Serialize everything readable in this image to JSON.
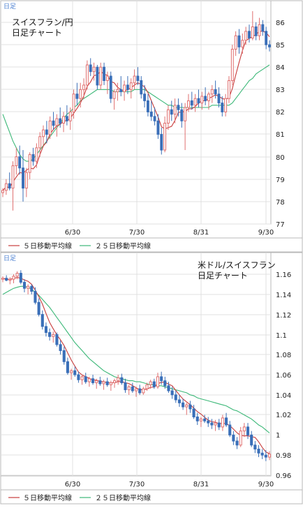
{
  "colors": {
    "border": "#b8b8b8",
    "grid": "#e0e0e0",
    "up": "#e07070",
    "down": "#3a6fb8",
    "ma5": "#c83c3c",
    "ma25": "#3cb878",
    "corner_label": "#4a7fd0"
  },
  "chart_data": [
    {
      "type": "candlestick",
      "corner_label": "日足",
      "title_lines": [
        "スイスフラン/円",
        "日足チャート"
      ],
      "x_tick_labels": [
        "6/30",
        "7/30",
        "8/31",
        "9/30"
      ],
      "y_tick_labels": [
        "86",
        "85",
        "84",
        "83",
        "82",
        "81",
        "80",
        "79",
        "78",
        "77"
      ],
      "ylim": [
        77,
        86.5
      ],
      "grid": true,
      "legend": [
        {
          "name": "５日移動平均線",
          "color": "#c83c3c"
        },
        {
          "name": "２５日移動平均線",
          "color": "#3cb878"
        }
      ],
      "ohlc": [
        [
          78.4,
          78.6,
          78.2,
          78.5
        ],
        [
          78.5,
          79.0,
          78.3,
          78.8
        ],
        [
          78.8,
          79.3,
          78.5,
          78.6
        ],
        [
          78.6,
          79.8,
          77.6,
          79.6
        ],
        [
          79.6,
          80.4,
          79.2,
          80.0
        ],
        [
          80.0,
          80.5,
          79.2,
          79.5
        ],
        [
          79.5,
          80.3,
          78.0,
          78.6
        ],
        [
          78.6,
          79.5,
          78.2,
          79.3
        ],
        [
          79.3,
          80.2,
          79.0,
          80.1
        ],
        [
          80.1,
          80.4,
          79.6,
          79.8
        ],
        [
          79.8,
          80.6,
          79.5,
          80.4
        ],
        [
          80.4,
          81.1,
          80.0,
          80.9
        ],
        [
          80.9,
          81.4,
          80.5,
          81.2
        ],
        [
          81.2,
          81.6,
          80.6,
          81.0
        ],
        [
          81.0,
          81.8,
          80.8,
          81.6
        ],
        [
          81.6,
          82.0,
          81.2,
          81.4
        ],
        [
          81.4,
          81.9,
          80.9,
          81.7
        ],
        [
          81.7,
          82.2,
          81.3,
          81.5
        ],
        [
          81.5,
          82.0,
          81.1,
          81.8
        ],
        [
          81.8,
          82.3,
          81.4,
          81.6
        ],
        [
          81.6,
          82.2,
          81.2,
          82.0
        ],
        [
          82.0,
          83.0,
          81.7,
          82.8
        ],
        [
          82.8,
          83.3,
          82.3,
          82.6
        ],
        [
          82.6,
          83.3,
          82.2,
          83.0
        ],
        [
          83.0,
          83.5,
          82.6,
          83.2
        ],
        [
          83.2,
          84.3,
          83.0,
          84.1
        ],
        [
          84.1,
          84.4,
          83.6,
          83.8
        ],
        [
          83.8,
          84.2,
          83.4,
          84.0
        ],
        [
          84.0,
          84.1,
          83.0,
          83.2
        ],
        [
          83.2,
          84.2,
          83.0,
          84.0
        ],
        [
          84.0,
          84.2,
          83.2,
          83.4
        ],
        [
          83.4,
          83.8,
          82.8,
          83.6
        ],
        [
          83.6,
          83.8,
          82.4,
          82.6
        ],
        [
          82.6,
          83.0,
          82.1,
          82.9
        ],
        [
          82.9,
          83.3,
          82.5,
          83.0
        ],
        [
          83.0,
          83.6,
          82.7,
          82.9
        ],
        [
          82.9,
          83.4,
          82.5,
          83.2
        ],
        [
          83.2,
          83.6,
          82.8,
          83.0
        ],
        [
          83.0,
          83.5,
          82.6,
          83.3
        ],
        [
          83.3,
          83.9,
          83.0,
          83.6
        ],
        [
          83.6,
          84.0,
          83.2,
          83.4
        ],
        [
          83.4,
          83.6,
          82.6,
          82.8
        ],
        [
          82.8,
          83.2,
          82.2,
          82.5
        ],
        [
          82.5,
          82.8,
          81.8,
          82.0
        ],
        [
          82.0,
          82.5,
          81.6,
          81.8
        ],
        [
          81.8,
          82.2,
          81.4,
          81.6
        ],
        [
          81.6,
          81.9,
          80.8,
          81.0
        ],
        [
          81.0,
          81.3,
          80.1,
          80.3
        ],
        [
          80.3,
          81.8,
          80.2,
          81.5
        ],
        [
          81.5,
          82.3,
          81.2,
          82.1
        ],
        [
          82.1,
          82.5,
          81.6,
          81.9
        ],
        [
          81.9,
          82.6,
          81.5,
          82.3
        ],
        [
          82.3,
          82.6,
          81.8,
          82.1
        ],
        [
          82.1,
          82.4,
          81.3,
          81.6
        ],
        [
          81.6,
          82.4,
          80.3,
          82.2
        ],
        [
          82.2,
          82.8,
          82.0,
          82.5
        ],
        [
          82.5,
          82.9,
          82.1,
          82.3
        ],
        [
          82.3,
          82.8,
          82.0,
          82.6
        ],
        [
          82.6,
          83.0,
          82.2,
          82.4
        ],
        [
          82.4,
          82.9,
          82.1,
          82.7
        ],
        [
          82.7,
          83.1,
          82.3,
          82.5
        ],
        [
          82.5,
          82.9,
          82.1,
          82.8
        ],
        [
          82.8,
          83.2,
          82.4,
          83.0
        ],
        [
          83.0,
          83.4,
          82.6,
          82.8
        ],
        [
          82.8,
          83.1,
          82.2,
          82.4
        ],
        [
          82.4,
          82.7,
          81.8,
          82.0
        ],
        [
          82.0,
          82.8,
          81.8,
          82.6
        ],
        [
          82.6,
          83.6,
          82.4,
          83.4
        ],
        [
          83.4,
          85.0,
          83.2,
          84.8
        ],
        [
          84.8,
          85.6,
          84.5,
          85.4
        ],
        [
          85.4,
          85.7,
          84.6,
          84.9
        ],
        [
          84.9,
          85.5,
          84.6,
          85.2
        ],
        [
          85.2,
          85.8,
          85.0,
          85.6
        ],
        [
          85.6,
          85.9,
          85.1,
          85.3
        ],
        [
          85.3,
          86.5,
          85.2,
          85.8
        ],
        [
          85.8,
          86.0,
          85.2,
          85.4
        ],
        [
          85.4,
          86.2,
          85.2,
          85.9
        ],
        [
          85.9,
          86.1,
          85.4,
          85.6
        ],
        [
          85.6,
          85.8,
          84.8,
          85.0
        ],
        [
          85.0,
          85.2,
          84.7,
          84.9
        ]
      ],
      "ma25": [
        81.9,
        81.5,
        81.1,
        80.7,
        80.4,
        80.1,
        79.9,
        79.8,
        79.8,
        79.9,
        80.1,
        80.3,
        80.5,
        80.7,
        80.9,
        81.1,
        81.3,
        81.5,
        81.7,
        81.9,
        82.0,
        82.2,
        82.3,
        82.5,
        82.6,
        82.7,
        82.8,
        82.9,
        83.0,
        83.0,
        83.0,
        83.0,
        83.0,
        82.9,
        82.9,
        82.9,
        82.9,
        82.9,
        82.9,
        83.0,
        83.0,
        83.0,
        83.0,
        82.9,
        82.8,
        82.7,
        82.6,
        82.5,
        82.4,
        82.3,
        82.3,
        82.2,
        82.2,
        82.2,
        82.2,
        82.2,
        82.2,
        82.2,
        82.2,
        82.2,
        82.2,
        82.2,
        82.3,
        82.3,
        82.3,
        82.3,
        82.3,
        82.3,
        82.4,
        82.6,
        82.8,
        83.0,
        83.2,
        83.4,
        83.5,
        83.7,
        83.8,
        83.9,
        84.0,
        84.1
      ]
    },
    {
      "type": "candlestick",
      "corner_label": "日足",
      "title_lines": [
        "米ドル/スイスフラン",
        "日足チャート"
      ],
      "x_tick_labels": [
        "6/30",
        "7/30",
        "8/31",
        "9/30"
      ],
      "y_tick_labels": [
        "1.16",
        "1.14",
        "1.12",
        "1.1",
        "1.08",
        "1.06",
        "1.04",
        "1.02",
        "1",
        "0.98",
        "0.96"
      ],
      "ylim": [
        0.96,
        1.17
      ],
      "grid": true,
      "legend": [
        {
          "name": "５日移動平均線",
          "color": "#c83c3c"
        },
        {
          "name": "２５日移動平均線",
          "color": "#3cb878"
        }
      ],
      "ohlc": [
        [
          1.155,
          1.158,
          1.152,
          1.156
        ],
        [
          1.156,
          1.159,
          1.153,
          1.154
        ],
        [
          1.154,
          1.157,
          1.15,
          1.155
        ],
        [
          1.155,
          1.16,
          1.151,
          1.158
        ],
        [
          1.158,
          1.163,
          1.155,
          1.161
        ],
        [
          1.161,
          1.164,
          1.15,
          1.152
        ],
        [
          1.152,
          1.155,
          1.142,
          1.146
        ],
        [
          1.146,
          1.15,
          1.14,
          1.148
        ],
        [
          1.148,
          1.15,
          1.14,
          1.143
        ],
        [
          1.143,
          1.147,
          1.13,
          1.132
        ],
        [
          1.132,
          1.136,
          1.118,
          1.12
        ],
        [
          1.12,
          1.124,
          1.105,
          1.108
        ],
        [
          1.108,
          1.112,
          1.098,
          1.102
        ],
        [
          1.102,
          1.106,
          1.094,
          1.098
        ],
        [
          1.098,
          1.103,
          1.092,
          1.1
        ],
        [
          1.1,
          1.102,
          1.088,
          1.09
        ],
        [
          1.09,
          1.094,
          1.08,
          1.084
        ],
        [
          1.084,
          1.088,
          1.07,
          1.073
        ],
        [
          1.073,
          1.077,
          1.06,
          1.062
        ],
        [
          1.062,
          1.066,
          1.055,
          1.064
        ],
        [
          1.064,
          1.068,
          1.058,
          1.06
        ],
        [
          1.06,
          1.063,
          1.052,
          1.055
        ],
        [
          1.055,
          1.06,
          1.05,
          1.058
        ],
        [
          1.058,
          1.062,
          1.051,
          1.053
        ],
        [
          1.053,
          1.058,
          1.048,
          1.056
        ],
        [
          1.056,
          1.06,
          1.05,
          1.052
        ],
        [
          1.052,
          1.056,
          1.046,
          1.054
        ],
        [
          1.054,
          1.058,
          1.049,
          1.051
        ],
        [
          1.051,
          1.055,
          1.045,
          1.053
        ],
        [
          1.053,
          1.057,
          1.048,
          1.05
        ],
        [
          1.05,
          1.054,
          1.044,
          1.052
        ],
        [
          1.052,
          1.056,
          1.047,
          1.054
        ],
        [
          1.054,
          1.06,
          1.05,
          1.057
        ],
        [
          1.057,
          1.061,
          1.05,
          1.052
        ],
        [
          1.052,
          1.056,
          1.042,
          1.045
        ],
        [
          1.045,
          1.05,
          1.04,
          1.048
        ],
        [
          1.048,
          1.052,
          1.042,
          1.044
        ],
        [
          1.044,
          1.048,
          1.038,
          1.046
        ],
        [
          1.046,
          1.05,
          1.04,
          1.042
        ],
        [
          1.042,
          1.048,
          1.04,
          1.046
        ],
        [
          1.046,
          1.052,
          1.044,
          1.05
        ],
        [
          1.05,
          1.055,
          1.046,
          1.053
        ],
        [
          1.053,
          1.056,
          1.046,
          1.048
        ],
        [
          1.048,
          1.062,
          1.046,
          1.058
        ],
        [
          1.058,
          1.063,
          1.05,
          1.054
        ],
        [
          1.054,
          1.058,
          1.046,
          1.049
        ],
        [
          1.049,
          1.053,
          1.042,
          1.044
        ],
        [
          1.044,
          1.048,
          1.036,
          1.04
        ],
        [
          1.04,
          1.044,
          1.032,
          1.035
        ],
        [
          1.035,
          1.04,
          1.028,
          1.032
        ],
        [
          1.032,
          1.036,
          1.025,
          1.028
        ],
        [
          1.028,
          1.032,
          1.02,
          1.03
        ],
        [
          1.03,
          1.034,
          1.022,
          1.026
        ],
        [
          1.026,
          1.03,
          1.016,
          1.018
        ],
        [
          1.018,
          1.022,
          1.01,
          1.014
        ],
        [
          1.014,
          1.018,
          1.008,
          1.016
        ],
        [
          1.016,
          1.02,
          1.012,
          1.014
        ],
        [
          1.014,
          1.018,
          1.008,
          1.012
        ],
        [
          1.012,
          1.016,
          1.006,
          1.01
        ],
        [
          1.01,
          1.015,
          1.004,
          1.012
        ],
        [
          1.012,
          1.016,
          1.005,
          1.008
        ],
        [
          1.008,
          1.02,
          1.004,
          1.017
        ],
        [
          1.017,
          1.022,
          1.008,
          1.01
        ],
        [
          1.01,
          1.014,
          0.998,
          1.0
        ],
        [
          1.0,
          1.004,
          0.99,
          0.994
        ],
        [
          0.994,
          0.998,
          0.986,
          0.99
        ],
        [
          0.99,
          1.008,
          0.988,
          1.004
        ],
        [
          1.004,
          1.012,
          0.998,
          1.008
        ],
        [
          1.008,
          1.012,
          0.996,
          1.0
        ],
        [
          1.0,
          1.004,
          0.988,
          0.99
        ],
        [
          0.99,
          0.994,
          0.982,
          0.986
        ],
        [
          0.986,
          0.99,
          0.978,
          0.982
        ],
        [
          0.982,
          0.986,
          0.976,
          0.98
        ],
        [
          0.98,
          0.985,
          0.974,
          0.978
        ],
        [
          0.978,
          0.984,
          0.975,
          0.981
        ]
      ],
      "ma25": [
        1.14,
        1.142,
        1.144,
        1.146,
        1.147,
        1.148,
        1.148,
        1.147,
        1.145,
        1.142,
        1.139,
        1.135,
        1.131,
        1.127,
        1.122,
        1.117,
        1.112,
        1.107,
        1.102,
        1.097,
        1.092,
        1.088,
        1.084,
        1.08,
        1.076,
        1.073,
        1.07,
        1.067,
        1.064,
        1.062,
        1.06,
        1.058,
        1.057,
        1.056,
        1.055,
        1.054,
        1.054,
        1.053,
        1.053,
        1.052,
        1.051,
        1.05,
        1.05,
        1.049,
        1.049,
        1.048,
        1.047,
        1.046,
        1.045,
        1.044,
        1.043,
        1.042,
        1.04,
        1.039,
        1.037,
        1.036,
        1.035,
        1.034,
        1.033,
        1.032,
        1.031,
        1.03,
        1.029,
        1.027,
        1.025,
        1.024,
        1.022,
        1.02,
        1.018,
        1.016,
        1.013,
        1.01,
        1.008,
        1.005,
        1.002
      ]
    }
  ]
}
